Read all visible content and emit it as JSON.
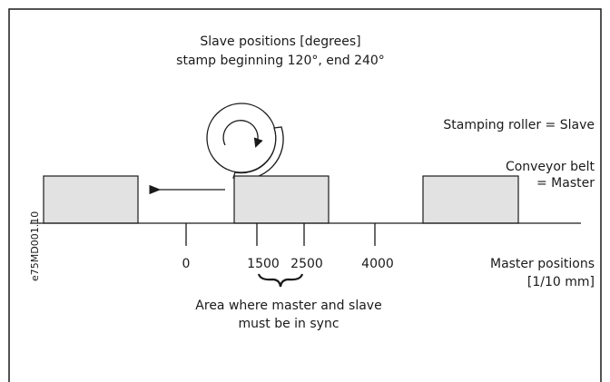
{
  "title": {
    "line1": "Slave positions [degrees]",
    "line2": "stamp beginning 120°, end 240°"
  },
  "labels": {
    "roller": "Stamping roller = Slave",
    "belt_line1": "Conveyor belt",
    "belt_line2": "= Master",
    "master_line1": "Master positions",
    "master_line2": "[1/10 mm]",
    "area_line1": "Area where master and slave",
    "area_line2": "must be in sync",
    "figure_id": "e75MD001.10"
  },
  "ticks": [
    "0",
    "1500",
    "2500",
    "4000"
  ]
}
